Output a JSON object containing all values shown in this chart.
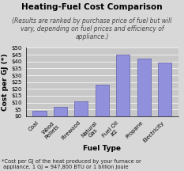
{
  "title": "Heating-Fuel Cost Comparison",
  "subtitle": "(Results are ranked by purchase price of fuel but will\nvary, depending on fuel prices and efficiency of\nappliance.)",
  "categories": [
    "Coal",
    "Wood\nPellets",
    "Firewood",
    "Natural\nGas",
    "Fuel Oil\n#2",
    "Propane",
    "Electricity"
  ],
  "values": [
    4,
    7,
    11,
    23,
    45,
    42,
    39
  ],
  "bar_color": "#9090dd",
  "bar_edge_color": "#6060aa",
  "xlabel": "Fuel Type",
  "ylabel": "Cost per GJ (*)",
  "ylim": [
    0,
    50
  ],
  "yticks": [
    0,
    5,
    10,
    15,
    20,
    25,
    30,
    35,
    40,
    45,
    50
  ],
  "ytick_labels": [
    "$0",
    "$5",
    "$10",
    "$15",
    "$20",
    "$25",
    "$30",
    "$35",
    "$40",
    "$45",
    "$50"
  ],
  "footnote": "*Cost per GJ of the heat produced by your furnace or\n appliance. 1 GJ = 947,800 BTU or 1 billion Joule",
  "bg_color": "#d8d8d8",
  "plot_bg_color": "#c8c8c8",
  "title_fontsize": 7.5,
  "subtitle_fontsize": 5.5,
  "axis_label_fontsize": 6.5,
  "tick_fontsize": 5,
  "footnote_fontsize": 4.8
}
